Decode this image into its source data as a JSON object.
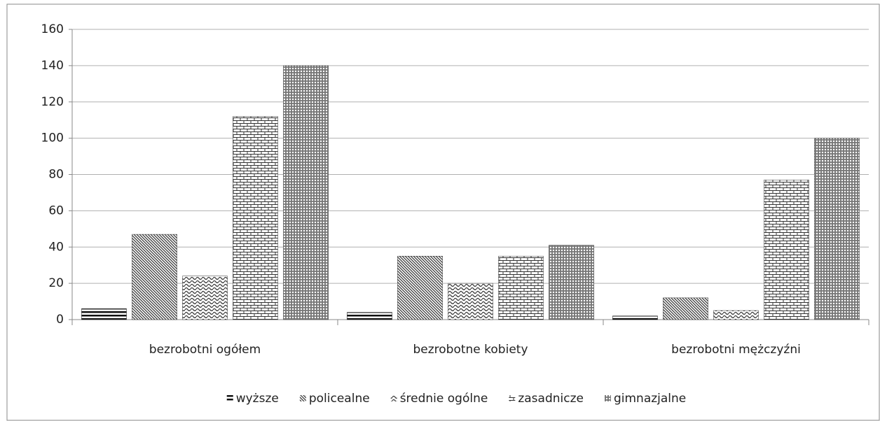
{
  "chart_data": {
    "type": "bar",
    "categories": [
      "bezrobotni ogółem",
      "bezrobotne kobiety",
      "bezrobotni mężczyźni"
    ],
    "series": [
      {
        "name": "wyższe",
        "color": "#111111",
        "pattern": "horizontal",
        "values": [
          6,
          4,
          2
        ]
      },
      {
        "name": "policealne",
        "color": "#333333",
        "pattern": "diagonal",
        "values": [
          47,
          35,
          12
        ]
      },
      {
        "name": "średnie ogólne",
        "color": "#333333",
        "pattern": "wave",
        "values": [
          24,
          20,
          5
        ]
      },
      {
        "name": "zasadnicze",
        "color": "#333333",
        "pattern": "brick",
        "values": [
          112,
          35,
          77
        ]
      },
      {
        "name": "gimnazjalne",
        "color": "#333333",
        "pattern": "weave",
        "values": [
          140,
          41,
          100
        ]
      }
    ],
    "ylim": [
      0,
      160
    ],
    "yticks": [
      0,
      20,
      40,
      60,
      80,
      100,
      120,
      140,
      160
    ],
    "grid": true,
    "legend": "bottom"
  }
}
